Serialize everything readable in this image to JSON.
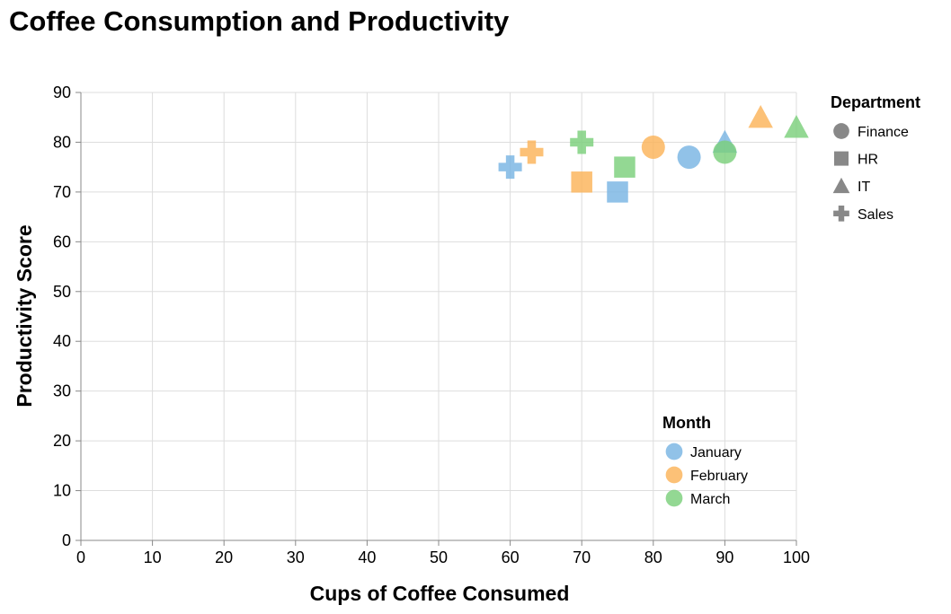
{
  "chart_data": {
    "type": "scatter",
    "title": "Coffee Consumption and Productivity",
    "xlabel": "Cups of Coffee Consumed",
    "ylabel": "Productivity Score",
    "xlim": [
      0,
      100
    ],
    "ylim": [
      0,
      90
    ],
    "x_ticks": [
      0,
      10,
      20,
      30,
      40,
      50,
      60,
      70,
      80,
      90,
      100
    ],
    "y_ticks": [
      0,
      10,
      20,
      30,
      40,
      50,
      60,
      70,
      80,
      90
    ],
    "grid": true,
    "color_legend": {
      "title": "Month",
      "placement": "bottom-right-inside",
      "items": [
        {
          "label": "January",
          "color": "#79b4e3"
        },
        {
          "label": "February",
          "color": "#fbb359"
        },
        {
          "label": "March",
          "color": "#7bcf7b"
        }
      ]
    },
    "shape_legend": {
      "title": "Department",
      "placement": "top-right-outside",
      "items": [
        {
          "label": "Finance",
          "shape": "circle"
        },
        {
          "label": "HR",
          "shape": "square"
        },
        {
          "label": "IT",
          "shape": "triangle"
        },
        {
          "label": "Sales",
          "shape": "cross"
        }
      ]
    },
    "points": [
      {
        "month": "January",
        "department": "Sales",
        "x": 60,
        "y": 75
      },
      {
        "month": "January",
        "department": "HR",
        "x": 75,
        "y": 70
      },
      {
        "month": "January",
        "department": "Finance",
        "x": 85,
        "y": 77
      },
      {
        "month": "January",
        "department": "IT",
        "x": 90,
        "y": 80
      },
      {
        "month": "February",
        "department": "Sales",
        "x": 63,
        "y": 78
      },
      {
        "month": "February",
        "department": "HR",
        "x": 70,
        "y": 72
      },
      {
        "month": "February",
        "department": "Finance",
        "x": 80,
        "y": 79
      },
      {
        "month": "February",
        "department": "IT",
        "x": 95,
        "y": 85
      },
      {
        "month": "March",
        "department": "Sales",
        "x": 70,
        "y": 80
      },
      {
        "month": "March",
        "department": "HR",
        "x": 76,
        "y": 75
      },
      {
        "month": "March",
        "department": "Finance",
        "x": 90,
        "y": 78
      },
      {
        "month": "March",
        "department": "IT",
        "x": 100,
        "y": 83
      }
    ]
  }
}
